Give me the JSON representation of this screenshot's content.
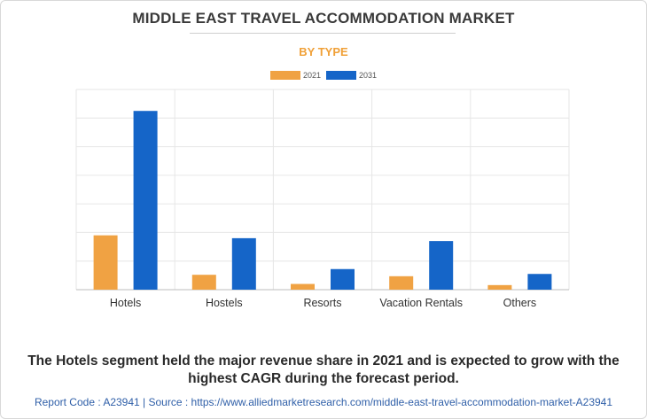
{
  "title": "MIDDLE EAST TRAVEL ACCOMMODATION MARKET",
  "subtitle": "BY TYPE",
  "colors": {
    "series2021": "#f0a243",
    "series2031": "#1565c8",
    "grid": "#e6e6e6",
    "axis": "#bdbdbd"
  },
  "chart_data": {
    "type": "bar",
    "title": "MIDDLE EAST TRAVEL ACCOMMODATION MARKET",
    "subtitle": "BY TYPE",
    "categories": [
      "Hotels",
      "Hostels",
      "Resorts",
      "Vacation Rentals",
      "Others"
    ],
    "series": [
      {
        "name": "2021",
        "values": [
          1.9,
          0.52,
          0.2,
          0.47,
          0.16
        ]
      },
      {
        "name": "2031",
        "values": [
          6.25,
          1.8,
          0.72,
          1.7,
          0.55
        ]
      }
    ],
    "xlabel": "",
    "ylabel": "",
    "ylim": [
      0,
      7
    ],
    "grid": true,
    "legend": "top-center"
  },
  "caption": "The Hotels segment held the major revenue share in 2021 and is expected to grow with the highest CAGR during the forecast period.",
  "footer": "Report Code : A23941  |  Source : https://www.alliedmarketresearch.com/middle-east-travel-accommodation-market-A23941"
}
